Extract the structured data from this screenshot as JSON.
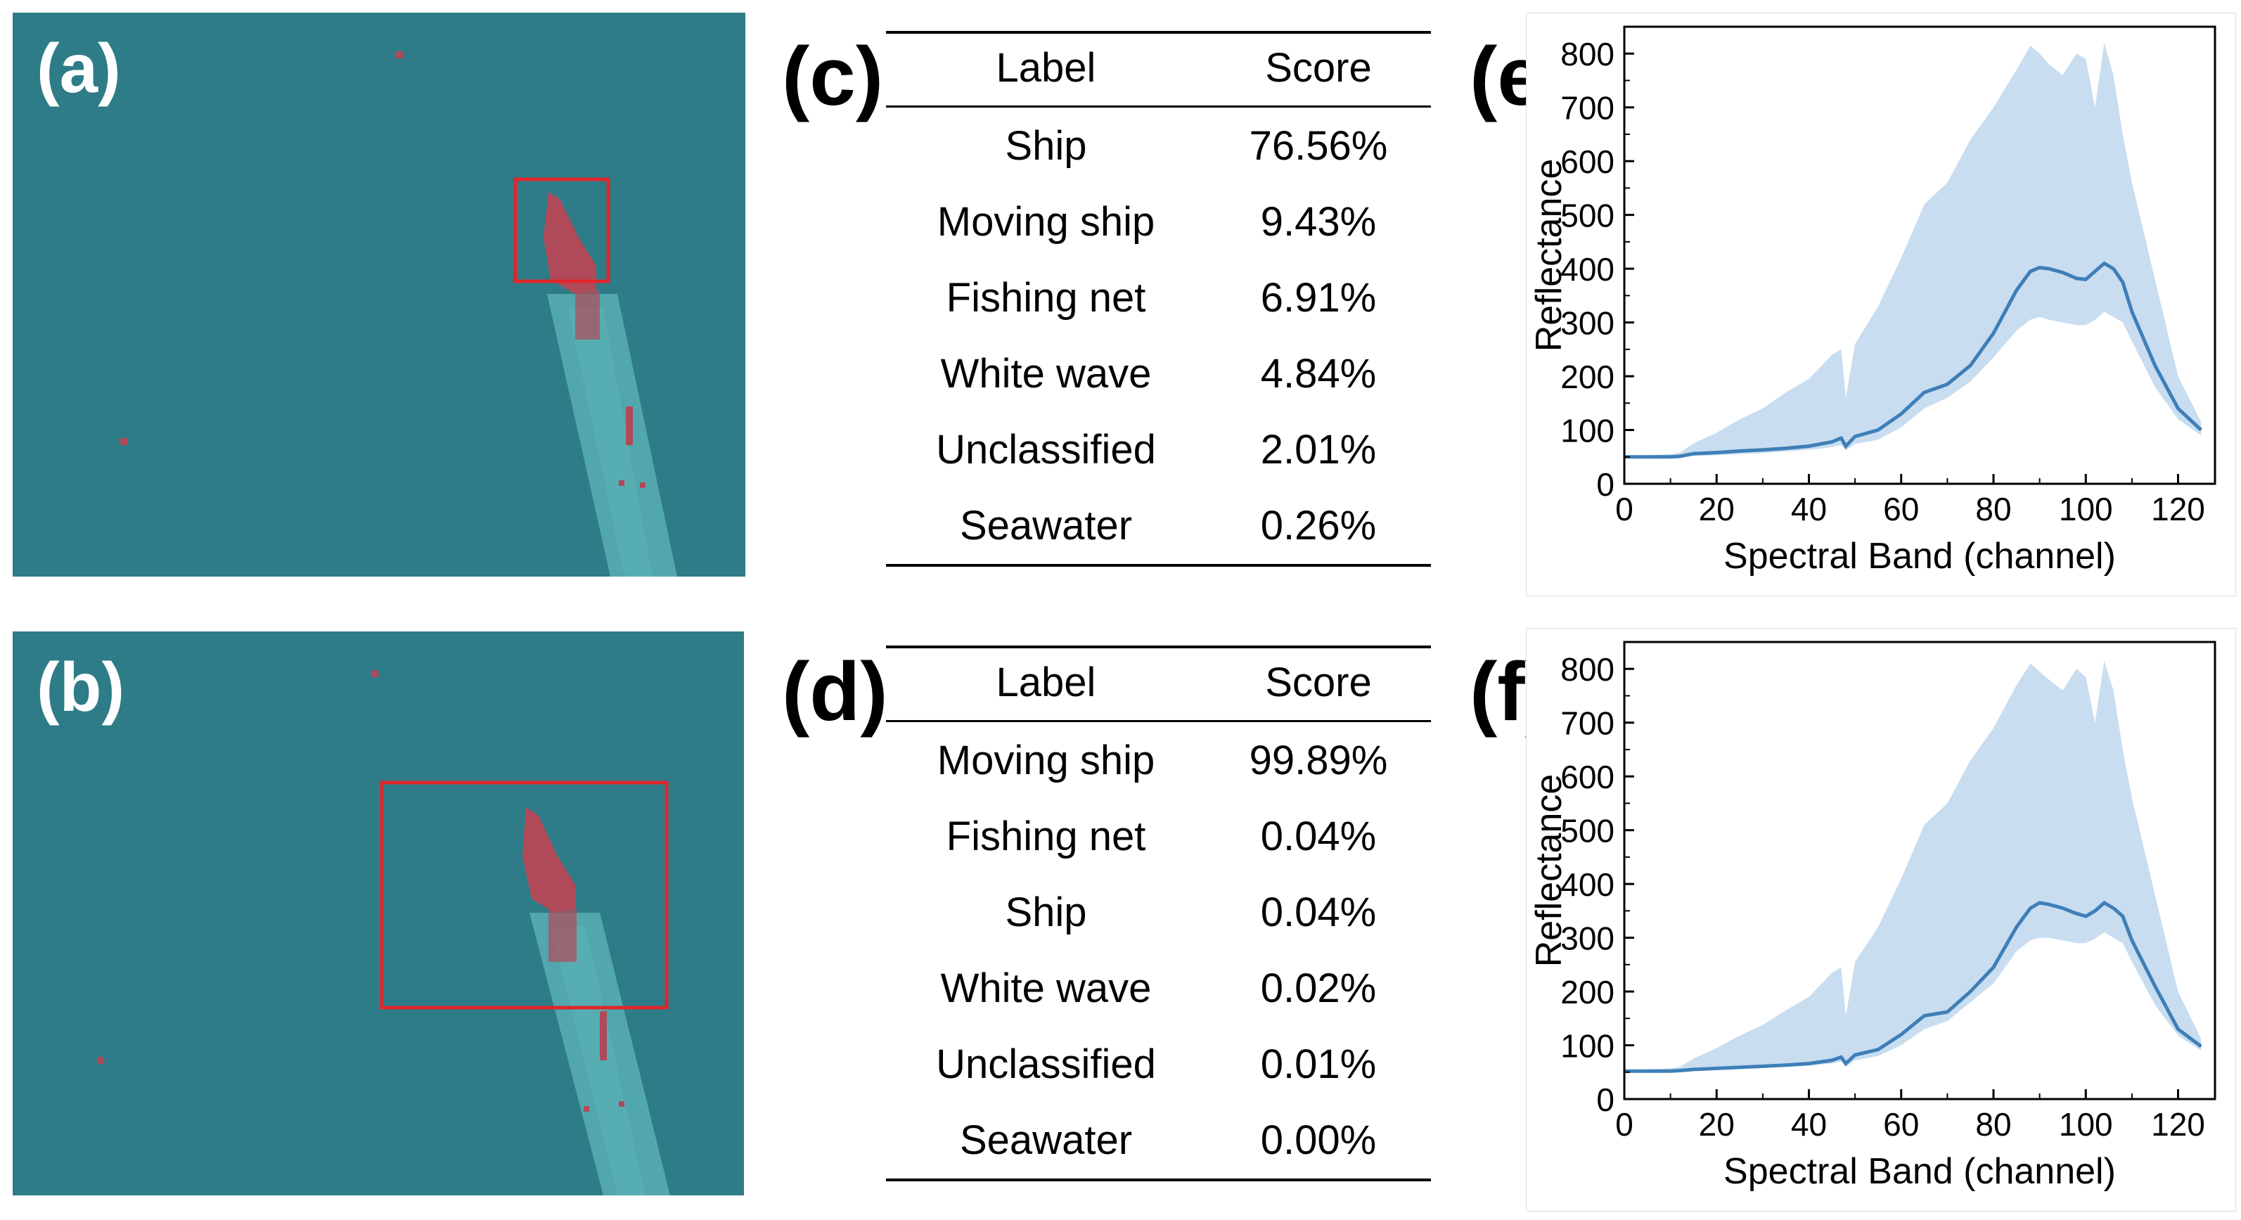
{
  "figure": {
    "panels": {
      "a": {
        "label": "(a)"
      },
      "b": {
        "label": "(b)"
      },
      "c": {
        "label": "(c)"
      },
      "d": {
        "label": "(d)"
      },
      "e": {
        "label": "(e)"
      },
      "f": {
        "label": "(f)"
      }
    },
    "colors": {
      "sea": "#2E7C88",
      "detection_box": "#E0262B",
      "ship": "#B04A59",
      "wake": "#5DB5B8",
      "line": "#3E7FB8",
      "band": "#C9DDF0"
    }
  },
  "tables": {
    "c": {
      "headers": [
        "Label",
        "Score"
      ],
      "rows": [
        {
          "label": "Ship",
          "score": "76.56%"
        },
        {
          "label": "Moving ship",
          "score": "9.43%"
        },
        {
          "label": "Fishing net",
          "score": "6.91%"
        },
        {
          "label": "White wave",
          "score": "4.84%"
        },
        {
          "label": "Unclassified",
          "score": "2.01%"
        },
        {
          "label": "Seawater",
          "score": "0.26%"
        }
      ]
    },
    "d": {
      "headers": [
        "Label",
        "Score"
      ],
      "rows": [
        {
          "label": "Moving ship",
          "score": "99.89%"
        },
        {
          "label": "Fishing net",
          "score": "0.04%"
        },
        {
          "label": "Ship",
          "score": "0.04%"
        },
        {
          "label": "White wave",
          "score": "0.02%"
        },
        {
          "label": "Unclassified",
          "score": "0.01%"
        },
        {
          "label": "Seawater",
          "score": "0.00%"
        }
      ]
    }
  },
  "chart_data": [
    {
      "panel": "e",
      "type": "area",
      "title": "",
      "xlabel": "Spectral Band (channel)",
      "ylabel": "Reflectance",
      "xlim": [
        0,
        128
      ],
      "ylim": [
        0,
        850
      ],
      "xticks": [
        0,
        20,
        40,
        60,
        80,
        100,
        120
      ],
      "yticks": [
        0,
        100,
        200,
        300,
        400,
        500,
        600,
        700,
        800
      ],
      "x": [
        0,
        5,
        10,
        12,
        15,
        20,
        25,
        30,
        35,
        40,
        45,
        47,
        48,
        50,
        55,
        60,
        65,
        70,
        75,
        80,
        85,
        88,
        90,
        92,
        95,
        98,
        100,
        102,
        104,
        106,
        108,
        110,
        115,
        120,
        125
      ],
      "mean": [
        50,
        50,
        50,
        51,
        56,
        58,
        61,
        63,
        66,
        70,
        78,
        85,
        70,
        88,
        100,
        130,
        170,
        185,
        220,
        280,
        360,
        395,
        402,
        400,
        393,
        382,
        380,
        395,
        410,
        400,
        375,
        320,
        220,
        140,
        100
      ],
      "upper": [
        52,
        53,
        55,
        58,
        75,
        95,
        120,
        140,
        170,
        195,
        240,
        250,
        160,
        260,
        330,
        420,
        520,
        560,
        640,
        700,
        770,
        815,
        800,
        780,
        760,
        800,
        790,
        700,
        820,
        760,
        650,
        560,
        380,
        200,
        115
      ],
      "lower": [
        48,
        48,
        48,
        49,
        52,
        53,
        55,
        57,
        60,
        63,
        68,
        72,
        62,
        74,
        82,
        105,
        140,
        160,
        190,
        235,
        285,
        305,
        310,
        305,
        300,
        295,
        295,
        305,
        320,
        310,
        300,
        265,
        180,
        120,
        90
      ]
    },
    {
      "panel": "f",
      "type": "area",
      "title": "",
      "xlabel": "Spectral Band (channel)",
      "ylabel": "Reflectance",
      "xlim": [
        0,
        128
      ],
      "ylim": [
        0,
        850
      ],
      "xticks": [
        0,
        20,
        40,
        60,
        80,
        100,
        120
      ],
      "yticks": [
        0,
        100,
        200,
        300,
        400,
        500,
        600,
        700,
        800
      ],
      "x": [
        0,
        5,
        10,
        12,
        15,
        20,
        25,
        30,
        35,
        40,
        45,
        47,
        48,
        50,
        55,
        60,
        65,
        70,
        75,
        80,
        85,
        88,
        90,
        92,
        95,
        98,
        100,
        102,
        104,
        106,
        108,
        110,
        115,
        120,
        125
      ],
      "mean": [
        52,
        52,
        52,
        53,
        55,
        57,
        59,
        61,
        63,
        66,
        72,
        78,
        66,
        82,
        92,
        120,
        155,
        162,
        200,
        245,
        320,
        355,
        365,
        362,
        355,
        345,
        340,
        350,
        365,
        355,
        340,
        295,
        210,
        130,
        98
      ],
      "upper": [
        54,
        55,
        57,
        60,
        75,
        95,
        118,
        138,
        165,
        190,
        235,
        245,
        155,
        255,
        320,
        410,
        510,
        550,
        630,
        690,
        770,
        810,
        795,
        780,
        760,
        800,
        785,
        700,
        815,
        760,
        650,
        560,
        380,
        200,
        112
      ],
      "lower": [
        50,
        50,
        50,
        51,
        53,
        54,
        56,
        58,
        60,
        62,
        66,
        70,
        60,
        72,
        80,
        100,
        130,
        145,
        180,
        215,
        275,
        295,
        300,
        300,
        295,
        290,
        290,
        298,
        310,
        300,
        290,
        255,
        175,
        118,
        90
      ]
    }
  ]
}
